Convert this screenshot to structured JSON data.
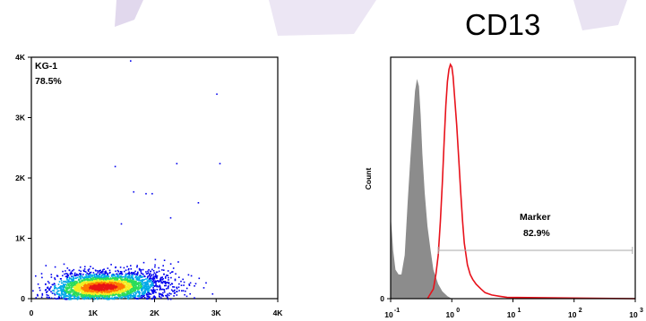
{
  "page": {
    "title": "CD13"
  },
  "colors": {
    "decor": "#d4c8e6",
    "hist_control": "#8c8c8c",
    "hist_sample": "#e8121b",
    "marker_line": "#aaaaaa"
  },
  "chart_data": [
    {
      "type": "scatter",
      "title": "",
      "xlabel": "",
      "ylabel": "",
      "xlim": [
        0,
        4000
      ],
      "ylim": [
        0,
        4000
      ],
      "x_ticks": [
        0,
        1000,
        2000,
        3000,
        4000
      ],
      "x_tick_labels": [
        "0",
        "1K",
        "2K",
        "3K",
        "4K"
      ],
      "y_ticks": [
        0,
        1000,
        2000,
        3000,
        4000
      ],
      "y_tick_labels": [
        "0",
        "1K",
        "2K",
        "3K",
        "4K"
      ],
      "gate": {
        "name": "KG-1",
        "percent": "78.5%"
      },
      "density": {
        "center": [
          1150,
          200
        ],
        "spread": [
          380,
          110
        ],
        "n_points": 3600
      },
      "outliers": [
        [
          1350,
          2200
        ],
        [
          2350,
          2250
        ],
        [
          3050,
          2250
        ],
        [
          1950,
          1750
        ],
        [
          1850,
          1750
        ],
        [
          2700,
          1600
        ],
        [
          1450,
          1250
        ],
        [
          2250,
          1350
        ],
        [
          3000,
          3400
        ],
        [
          1600,
          3950
        ],
        [
          1650,
          1780
        ]
      ],
      "colormap": [
        "#0000ee",
        "#00a9e8",
        "#2bdc5a",
        "#f4ed22",
        "#ff7a00",
        "#e81515"
      ],
      "grid": false
    },
    {
      "type": "area",
      "title": "",
      "xlabel": "",
      "ylabel": "Count",
      "x_scale": "log",
      "xlim": [
        0.1,
        1000
      ],
      "x_ticks": [
        0.1,
        1,
        10,
        100,
        1000
      ],
      "x_tick_labels": [
        {
          "base": "10",
          "exp": "-1"
        },
        {
          "base": "10",
          "exp": "0"
        },
        {
          "base": "10",
          "exp": "1"
        },
        {
          "base": "10",
          "exp": "2"
        },
        {
          "base": "10",
          "exp": "3"
        }
      ],
      "y_ticks": [
        0
      ],
      "y_tick_labels": [
        "0"
      ],
      "ylim": [
        0,
        100
      ],
      "series": [
        {
          "style": "filled",
          "x": [
            0.1,
            0.102,
            0.11,
            0.12,
            0.135,
            0.15,
            0.17,
            0.19,
            0.21,
            0.23,
            0.25,
            0.27,
            0.29,
            0.31,
            0.33,
            0.36,
            0.4,
            0.45,
            0.5,
            0.6,
            0.7,
            0.85,
            1.0
          ],
          "y": [
            0,
            32,
            20,
            12,
            10,
            10,
            18,
            40,
            58,
            73,
            86,
            91,
            88,
            76,
            60,
            44,
            30,
            20,
            12,
            6,
            3,
            1,
            0
          ]
        },
        {
          "style": "line",
          "x": [
            0.4,
            0.5,
            0.55,
            0.6,
            0.65,
            0.7,
            0.75,
            0.8,
            0.85,
            0.9,
            0.95,
            1.0,
            1.05,
            1.1,
            1.2,
            1.3,
            1.4,
            1.5,
            1.6,
            1.8,
            2.0,
            2.2,
            2.5,
            3.0,
            3.5,
            4.5,
            6.0,
            8.0,
            1000
          ],
          "y": [
            0,
            4,
            10,
            18,
            32,
            48,
            65,
            80,
            90,
            95,
            97,
            96,
            92,
            85,
            72,
            58,
            44,
            32,
            23,
            14,
            10,
            8,
            6,
            4,
            2.5,
            1.5,
            1,
            0.5,
            0
          ]
        }
      ],
      "marker": {
        "label": "Marker",
        "percent": "82.9%",
        "range": [
          0.6,
          900
        ]
      },
      "grid": false
    }
  ]
}
